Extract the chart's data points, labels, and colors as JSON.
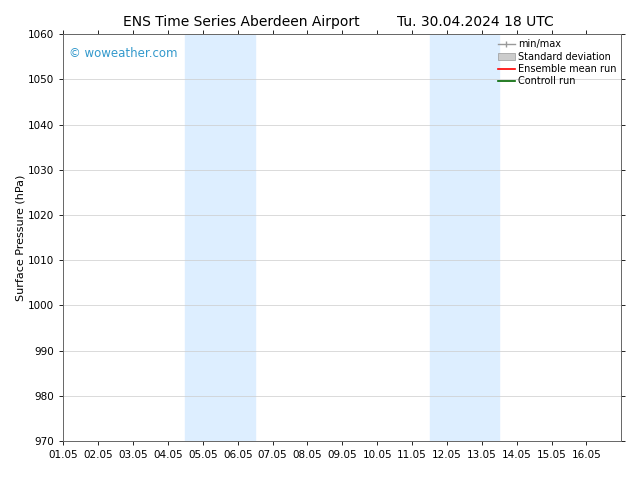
{
  "title_left": "ENS Time Series Aberdeen Airport",
  "title_right": "Tu. 30.04.2024 18 UTC",
  "ylabel": "Surface Pressure (hPa)",
  "xlim_start": 0,
  "xlim_end": 16,
  "ylim": [
    970,
    1060
  ],
  "yticks": [
    970,
    980,
    990,
    1000,
    1010,
    1020,
    1030,
    1040,
    1050,
    1060
  ],
  "xtick_labels": [
    "01.05",
    "02.05",
    "03.05",
    "04.05",
    "05.05",
    "06.05",
    "07.05",
    "08.05",
    "09.05",
    "10.05",
    "11.05",
    "12.05",
    "13.05",
    "14.05",
    "15.05",
    "16.05"
  ],
  "xtick_positions": [
    0,
    1,
    2,
    3,
    4,
    5,
    6,
    7,
    8,
    9,
    10,
    11,
    12,
    13,
    14,
    15
  ],
  "shaded_bands": [
    {
      "x_start": 3.5,
      "x_end": 5.5
    },
    {
      "x_start": 10.5,
      "x_end": 12.5
    }
  ],
  "shade_color": "#ddeeff",
  "background_color": "#ffffff",
  "grid_color": "#cccccc",
  "watermark": "© woweather.com",
  "watermark_color": "#3399cc",
  "title_fontsize": 10,
  "axis_fontsize": 8,
  "tick_fontsize": 7.5,
  "watermark_fontsize": 8.5,
  "legend_fontsize": 7,
  "minmax_color": "#999999",
  "std_face_color": "#cccccc",
  "std_edge_color": "#999999",
  "ensemble_color": "#ff0000",
  "control_color": "#006600"
}
